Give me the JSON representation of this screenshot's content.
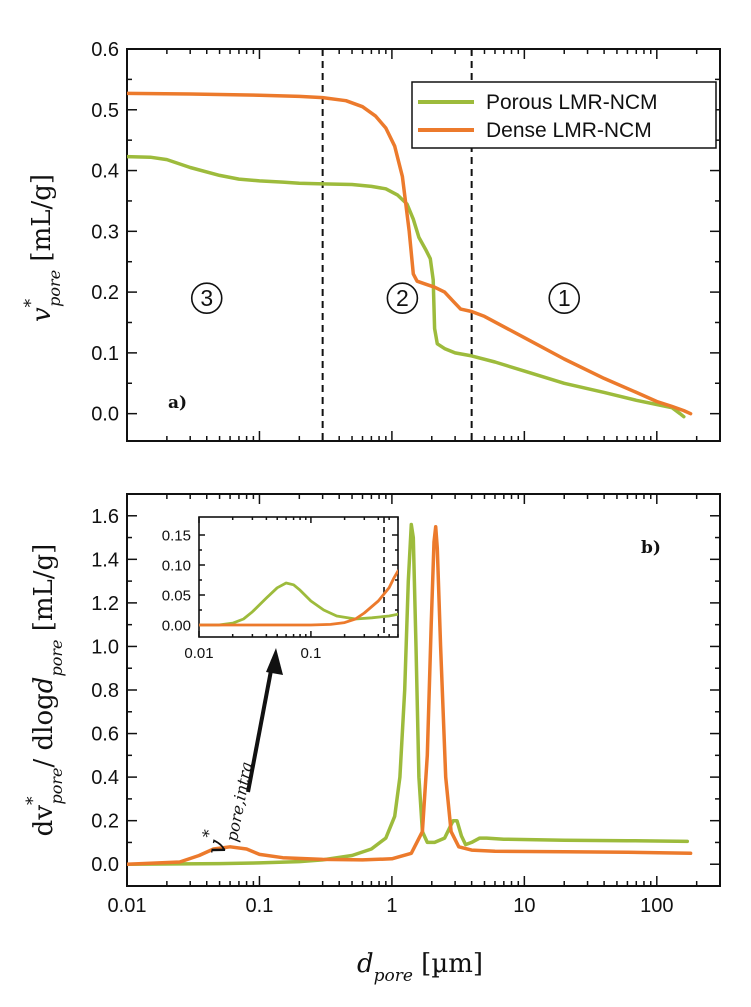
{
  "colors": {
    "porous": "#9dbb3c",
    "dense": "#ec7a2c",
    "axes": "#111111"
  },
  "chart_data": [
    {
      "panel": "a)",
      "type": "line",
      "xscale": "log",
      "xlim": [
        0.01,
        300
      ],
      "ylim": [
        -0.045,
        0.6
      ],
      "ylabel": {
        "var": "v",
        "sup": "*",
        "sub": "pore",
        "unit": " [mL/g]"
      },
      "yticks": [
        "0.0",
        "0.1",
        "0.2",
        "0.3",
        "0.4",
        "0.5",
        "0.6"
      ],
      "vlines": [
        0.3,
        4.0
      ],
      "regions": [
        {
          "label": "3",
          "x": 0.04,
          "y": 0.19
        },
        {
          "label": "2",
          "x": 1.2,
          "y": 0.19
        },
        {
          "label": "1",
          "x": 20,
          "y": 0.19
        }
      ],
      "legend": {
        "position": "top-right"
      },
      "series": [
        {
          "name": "Porous LMR-NCM",
          "color_key": "porous",
          "points": [
            [
              0.01,
              0.423
            ],
            [
              0.015,
              0.422
            ],
            [
              0.02,
              0.418
            ],
            [
              0.03,
              0.405
            ],
            [
              0.05,
              0.392
            ],
            [
              0.07,
              0.386
            ],
            [
              0.1,
              0.383
            ],
            [
              0.15,
              0.381
            ],
            [
              0.2,
              0.379
            ],
            [
              0.3,
              0.378
            ],
            [
              0.5,
              0.377
            ],
            [
              0.7,
              0.374
            ],
            [
              0.9,
              0.37
            ],
            [
              1.1,
              0.36
            ],
            [
              1.3,
              0.345
            ],
            [
              1.45,
              0.32
            ],
            [
              1.6,
              0.29
            ],
            [
              1.8,
              0.27
            ],
            [
              1.95,
              0.255
            ],
            [
              2.05,
              0.22
            ],
            [
              2.1,
              0.14
            ],
            [
              2.2,
              0.115
            ],
            [
              2.5,
              0.107
            ],
            [
              3,
              0.1
            ],
            [
              4,
              0.095
            ],
            [
              6,
              0.085
            ],
            [
              10,
              0.07
            ],
            [
              20,
              0.05
            ],
            [
              40,
              0.035
            ],
            [
              70,
              0.022
            ],
            [
              100,
              0.015
            ],
            [
              130,
              0.01
            ],
            [
              150,
              0.0
            ],
            [
              160,
              -0.005
            ]
          ]
        },
        {
          "name": "Dense LMR-NCM",
          "color_key": "dense",
          "points": [
            [
              0.01,
              0.527
            ],
            [
              0.03,
              0.526
            ],
            [
              0.1,
              0.524
            ],
            [
              0.2,
              0.522
            ],
            [
              0.3,
              0.52
            ],
            [
              0.45,
              0.515
            ],
            [
              0.6,
              0.505
            ],
            [
              0.75,
              0.49
            ],
            [
              0.9,
              0.47
            ],
            [
              1.05,
              0.44
            ],
            [
              1.2,
              0.39
            ],
            [
              1.35,
              0.3
            ],
            [
              1.45,
              0.23
            ],
            [
              1.55,
              0.218
            ],
            [
              1.8,
              0.213
            ],
            [
              2.1,
              0.208
            ],
            [
              2.5,
              0.2
            ],
            [
              2.9,
              0.185
            ],
            [
              3.3,
              0.172
            ],
            [
              4,
              0.168
            ],
            [
              5,
              0.16
            ],
            [
              10,
              0.125
            ],
            [
              20,
              0.09
            ],
            [
              40,
              0.058
            ],
            [
              70,
              0.035
            ],
            [
              100,
              0.02
            ],
            [
              130,
              0.012
            ],
            [
              160,
              0.005
            ],
            [
              180,
              0.0
            ]
          ]
        }
      ]
    },
    {
      "panel": "b)",
      "type": "line",
      "xscale": "log",
      "xlim": [
        0.01,
        300
      ],
      "ylim": [
        -0.1,
        1.7
      ],
      "xlabel": {
        "var": "d",
        "sub": "pore",
        "unit": " [µm]"
      },
      "ylabel": {
        "pre": "dv",
        "sup": "*",
        "sub": "pore",
        "mid": "/ dlog",
        "var": "d",
        "sub2": "pore",
        "unit": " [mL/g]"
      },
      "xticks": [
        "0.01",
        "0.1",
        "1",
        "10",
        "100"
      ],
      "yticks": [
        "0.0",
        "0.2",
        "0.4",
        "0.6",
        "0.8",
        "1.0",
        "1.2",
        "1.4",
        "1.6"
      ],
      "annotation": {
        "var": "v",
        "sup": "*",
        "sub": "pore,intra"
      },
      "series": [
        {
          "name": "Porous LMR-NCM",
          "color_key": "porous",
          "points": [
            [
              0.01,
              0.0
            ],
            [
              0.05,
              0.003
            ],
            [
              0.1,
              0.006
            ],
            [
              0.2,
              0.012
            ],
            [
              0.3,
              0.02
            ],
            [
              0.5,
              0.04
            ],
            [
              0.7,
              0.07
            ],
            [
              0.9,
              0.12
            ],
            [
              1.05,
              0.22
            ],
            [
              1.15,
              0.4
            ],
            [
              1.25,
              0.8
            ],
            [
              1.33,
              1.3
            ],
            [
              1.4,
              1.56
            ],
            [
              1.45,
              1.5
            ],
            [
              1.52,
              1.0
            ],
            [
              1.6,
              0.4
            ],
            [
              1.7,
              0.15
            ],
            [
              1.85,
              0.1
            ],
            [
              2.1,
              0.1
            ],
            [
              2.5,
              0.12
            ],
            [
              2.9,
              0.2
            ],
            [
              3.1,
              0.2
            ],
            [
              3.35,
              0.13
            ],
            [
              3.6,
              0.09
            ],
            [
              4,
              0.1
            ],
            [
              4.6,
              0.12
            ],
            [
              5.2,
              0.12
            ],
            [
              7,
              0.115
            ],
            [
              20,
              0.11
            ],
            [
              60,
              0.108
            ],
            [
              170,
              0.105
            ]
          ]
        },
        {
          "name": "Dense LMR-NCM",
          "color_key": "dense",
          "points": [
            [
              0.01,
              0.0
            ],
            [
              0.025,
              0.01
            ],
            [
              0.035,
              0.04
            ],
            [
              0.045,
              0.07
            ],
            [
              0.06,
              0.08
            ],
            [
              0.08,
              0.07
            ],
            [
              0.1,
              0.045
            ],
            [
              0.15,
              0.03
            ],
            [
              0.3,
              0.022
            ],
            [
              0.6,
              0.02
            ],
            [
              1.0,
              0.025
            ],
            [
              1.4,
              0.05
            ],
            [
              1.7,
              0.15
            ],
            [
              1.85,
              0.5
            ],
            [
              1.98,
              1.1
            ],
            [
              2.08,
              1.48
            ],
            [
              2.14,
              1.55
            ],
            [
              2.2,
              1.45
            ],
            [
              2.33,
              1.0
            ],
            [
              2.55,
              0.4
            ],
            [
              2.8,
              0.15
            ],
            [
              3.2,
              0.08
            ],
            [
              4,
              0.065
            ],
            [
              6,
              0.06
            ],
            [
              20,
              0.057
            ],
            [
              60,
              0.055
            ],
            [
              180,
              0.05
            ]
          ]
        }
      ]
    },
    {
      "panel": "inset",
      "type": "line",
      "xscale": "log",
      "xlim": [
        0.01,
        0.6
      ],
      "ylim": [
        -0.02,
        0.18
      ],
      "xticks": [
        "0.01",
        "0.1"
      ],
      "yticks": [
        "0.00",
        "0.05",
        "0.10",
        "0.15"
      ],
      "vline": 0.45,
      "series": [
        {
          "name": "Porous LMR-NCM",
          "color_key": "porous",
          "points": [
            [
              0.01,
              0.0
            ],
            [
              0.015,
              0.0
            ],
            [
              0.02,
              0.003
            ],
            [
              0.025,
              0.01
            ],
            [
              0.03,
              0.022
            ],
            [
              0.04,
              0.045
            ],
            [
              0.05,
              0.062
            ],
            [
              0.06,
              0.07
            ],
            [
              0.07,
              0.067
            ],
            [
              0.08,
              0.058
            ],
            [
              0.1,
              0.04
            ],
            [
              0.13,
              0.025
            ],
            [
              0.17,
              0.015
            ],
            [
              0.25,
              0.01
            ],
            [
              0.35,
              0.012
            ],
            [
              0.5,
              0.015
            ],
            [
              0.6,
              0.018
            ]
          ]
        },
        {
          "name": "Dense LMR-NCM",
          "color_key": "dense",
          "points": [
            [
              0.01,
              0.0
            ],
            [
              0.05,
              0.0
            ],
            [
              0.1,
              0.0
            ],
            [
              0.15,
              0.001
            ],
            [
              0.2,
              0.004
            ],
            [
              0.25,
              0.01
            ],
            [
              0.3,
              0.02
            ],
            [
              0.4,
              0.04
            ],
            [
              0.5,
              0.062
            ],
            [
              0.55,
              0.078
            ],
            [
              0.6,
              0.09
            ]
          ]
        }
      ]
    }
  ]
}
